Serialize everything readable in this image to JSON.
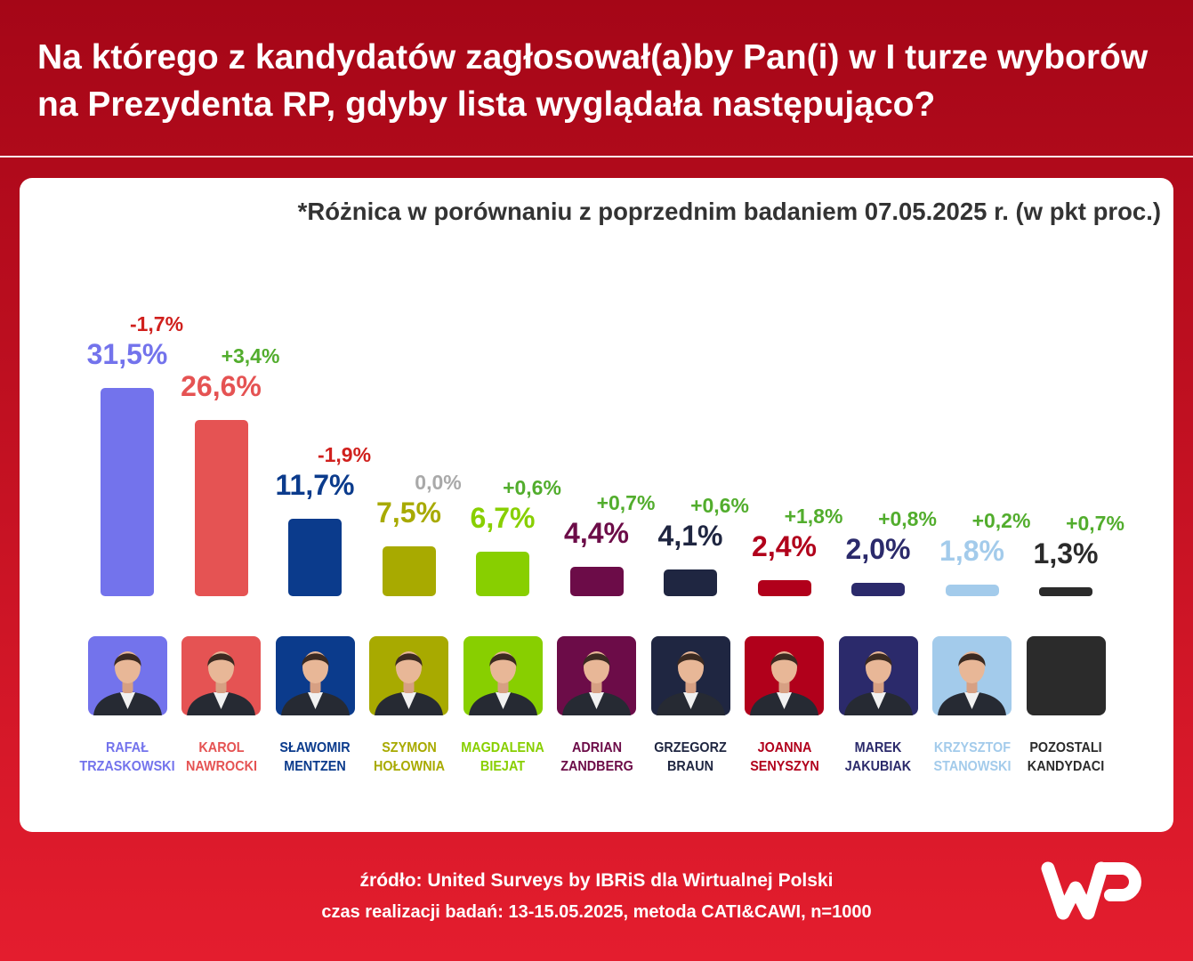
{
  "theme": {
    "background_top": "#a50617",
    "background_bottom": "#e41d2e",
    "panel": "#ffffff",
    "text_light": "#ffffff",
    "note": "#333333"
  },
  "logo": {
    "text": "WP",
    "icon": "wp-logo"
  },
  "chart_data": {
    "type": "bar",
    "title": "Na którego z kandydatów zagłosował(a)by Pan(i) w I turze wyborów na Prezydenta RP, gdyby lista wyglądała następująco?",
    "note": "*Różnica w porównaniu z poprzednim badaniem 07.05.2025 r. (w pkt proc.)",
    "categories": [
      "RAFAŁ TRZASKOWSKI",
      "KAROL NAWROCKI",
      "SŁAWOMIR MENTZEN",
      "SZYMON HOŁOWNIA",
      "MAGDALENA BIEJAT",
      "ADRIAN ZANDBERG",
      "GRZEGORZ BRAUN",
      "JOANNA SENYSZYN",
      "MAREK JAKUBIAK",
      "KRZYSZTOF STANOWSKI",
      "POZOSTALI KANDYDACI"
    ],
    "values": [
      31.5,
      26.6,
      11.7,
      7.5,
      6.7,
      4.4,
      4.1,
      2.4,
      2.0,
      1.8,
      1.3
    ],
    "value_labels": [
      "31,5%",
      "26,6%",
      "11,7%",
      "7,5%",
      "6,7%",
      "4,4%",
      "4,1%",
      "2,4%",
      "2,0%",
      "1,8%",
      "1,3%"
    ],
    "changes": [
      -1.7,
      3.4,
      -1.9,
      0.0,
      0.6,
      0.7,
      0.6,
      1.8,
      0.8,
      0.2,
      0.7
    ],
    "change_labels": [
      "-1,7%",
      "+3,4%",
      "-1,9%",
      "0,0%",
      "+0,6%",
      "+0,7%",
      "+0,6%",
      "+1,8%",
      "+0,8%",
      "+0,2%",
      "+0,7%"
    ],
    "colors": [
      "#7373ec",
      "#e55353",
      "#0b3b8c",
      "#a8aa00",
      "#88cf00",
      "#6c0c48",
      "#1f2641",
      "#b1001b",
      "#2b2a6b",
      "#a3cbeb",
      "#2b2b2b"
    ],
    "change_colors": {
      "positive": "#52ad2d",
      "negative": "#d0201d",
      "zero": "#a9a9a9"
    },
    "photos": [
      "rafal-trzaskowski-photo",
      "karol-nawrocki-photo",
      "slawomir-mentzen-photo",
      "szymon-holownia-photo",
      "magdalena-biejat-photo",
      "adrian-zandberg-photo",
      "grzegorz-braun-photo",
      "joanna-senyszyn-photo",
      "marek-jakubiak-photo",
      "krzysztof-stanowski-photo",
      "blank-tile"
    ],
    "grid": false,
    "source": "źródło: United Surveys by IBRiS dla Wirtualnej Polski",
    "fieldwork": "czas realizacji badań: 13-15.05.2025, metoda CATI&CAWI, n=1000"
  }
}
